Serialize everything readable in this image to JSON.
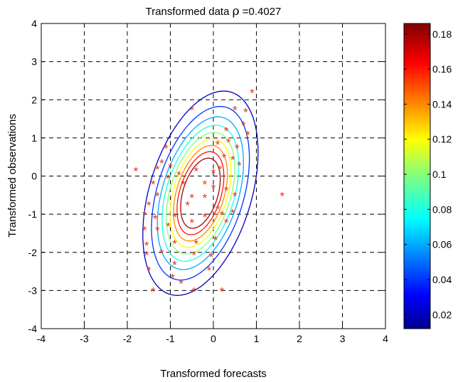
{
  "chart_data": {
    "type": "scatter",
    "title_prefix": "Transformed data ",
    "title_symbol": "ρ",
    "title_suffix": " =0.4027",
    "xlabel": "Transformed forecasts",
    "ylabel": "Transformed observations",
    "xlim": [
      -4,
      4
    ],
    "ylim": [
      -4,
      4
    ],
    "xticks": [
      "-4",
      "-3",
      "-2",
      "-1",
      "0",
      "1",
      "2",
      "3",
      "4"
    ],
    "yticks": [
      "-4",
      "-3",
      "-2",
      "-1",
      "0",
      "1",
      "2",
      "3",
      "4"
    ],
    "grid": true,
    "marker": "*",
    "marker_color": "#e8321e",
    "contour": {
      "rho": 0.4027,
      "center": [
        -0.3,
        -0.45
      ],
      "sigma_x": 0.6,
      "sigma_y": 1.2,
      "levels": [
        0.02,
        0.04,
        0.06,
        0.08,
        0.1,
        0.12,
        0.14,
        0.16,
        0.18
      ]
    },
    "colorbar": {
      "range": [
        0.012,
        0.186
      ],
      "ticks": [
        "0.02",
        "0.04",
        "0.06",
        "0.08",
        "0.1",
        "0.12",
        "0.14",
        "0.16",
        "0.18"
      ]
    },
    "points": [
      [
        0.9,
        2.2
      ],
      [
        0.75,
        1.7
      ],
      [
        0.5,
        1.75
      ],
      [
        0.7,
        1.35
      ],
      [
        0.8,
        1.1
      ],
      [
        -0.5,
        1.75
      ],
      [
        0.3,
        1.2
      ],
      [
        0.1,
        0.85
      ],
      [
        0.35,
        0.9
      ],
      [
        0.55,
        0.75
      ],
      [
        0.25,
        0.5
      ],
      [
        0.45,
        0.45
      ],
      [
        0.6,
        0.3
      ],
      [
        0.15,
        0.2
      ],
      [
        -1.1,
        0.75
      ],
      [
        -1.2,
        0.35
      ],
      [
        -1.0,
        0.25
      ],
      [
        -1.8,
        0.15
      ],
      [
        -1.3,
        0.2
      ],
      [
        -1.4,
        -0.2
      ],
      [
        -1.05,
        -0.05
      ],
      [
        -0.8,
        0.05
      ],
      [
        -1.3,
        -0.5
      ],
      [
        -0.4,
        0.15
      ],
      [
        -0.2,
        -0.2
      ],
      [
        0.0,
        -0.3
      ],
      [
        0.3,
        -0.35
      ],
      [
        -0.5,
        -0.55
      ],
      [
        -0.2,
        -0.55
      ],
      [
        0.5,
        -0.5
      ],
      [
        -0.6,
        -0.75
      ],
      [
        -1.5,
        -0.75
      ],
      [
        -1.6,
        -1.0
      ],
      [
        -1.35,
        -1.1
      ],
      [
        -1.3,
        -1.4
      ],
      [
        -1.6,
        -1.4
      ],
      [
        -0.9,
        -1.05
      ],
      [
        -0.5,
        -1.2
      ],
      [
        -0.2,
        -1.05
      ],
      [
        0.1,
        -0.85
      ],
      [
        0.2,
        -1.0
      ],
      [
        0.45,
        -0.95
      ],
      [
        -1.05,
        -1.3
      ],
      [
        -0.9,
        -1.75
      ],
      [
        -0.4,
        -1.75
      ],
      [
        0.05,
        -1.65
      ],
      [
        -1.55,
        -1.8
      ],
      [
        -1.55,
        -2.05
      ],
      [
        -1.2,
        -2.0
      ],
      [
        -0.45,
        -2.05
      ],
      [
        -0.05,
        -2.1
      ],
      [
        -0.9,
        -2.3
      ],
      [
        -1.5,
        -2.45
      ],
      [
        -0.1,
        -2.45
      ],
      [
        -0.95,
        -2.65
      ],
      [
        -0.75,
        -2.8
      ],
      [
        -1.4,
        -3.0
      ],
      [
        -0.45,
        -3.0
      ],
      [
        0.2,
        -3.0
      ],
      [
        1.6,
        -0.5
      ],
      [
        0.3,
        -1.2
      ],
      [
        -0.7,
        -0.2
      ],
      [
        0.0,
        0.1
      ]
    ]
  }
}
